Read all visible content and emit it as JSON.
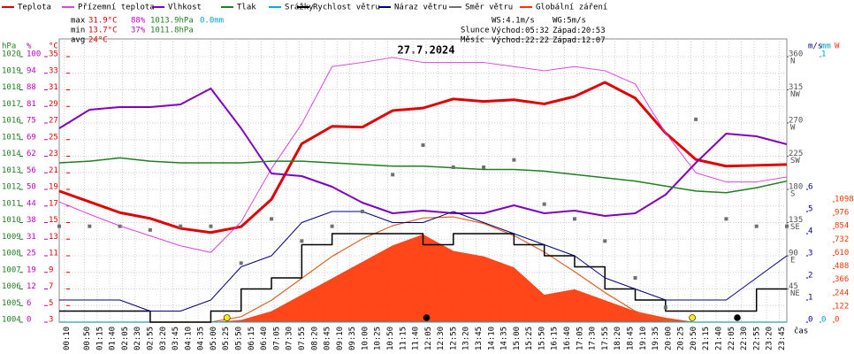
{
  "chart_data": {
    "type": "weather",
    "title": "27.7.2024",
    "x_axis_label": "čas",
    "xlim": [
      0,
      1440
    ],
    "xticks": [
      {
        "value": 10,
        "label": "00:10"
      },
      {
        "value": 50,
        "label": "00:50"
      },
      {
        "value": 75,
        "label": "01:15"
      },
      {
        "value": 100,
        "label": "01:40"
      },
      {
        "value": 125,
        "label": "02:05"
      },
      {
        "value": 150,
        "label": "02:30"
      },
      {
        "value": 175,
        "label": "02:55"
      },
      {
        "value": 200,
        "label": "03:20"
      },
      {
        "value": 225,
        "label": "03:45"
      },
      {
        "value": 250,
        "label": "04:10"
      },
      {
        "value": 275,
        "label": "04:35"
      },
      {
        "value": 300,
        "label": "05:00"
      },
      {
        "value": 325,
        "label": "05:25"
      },
      {
        "value": 350,
        "label": "05:50"
      },
      {
        "value": 375,
        "label": "06:15"
      },
      {
        "value": 400,
        "label": "06:40"
      },
      {
        "value": 425,
        "label": "07:05"
      },
      {
        "value": 450,
        "label": "07:30"
      },
      {
        "value": 475,
        "label": "07:55"
      },
      {
        "value": 500,
        "label": "08:20"
      },
      {
        "value": 525,
        "label": "08:45"
      },
      {
        "value": 550,
        "label": "09:10"
      },
      {
        "value": 575,
        "label": "09:35"
      },
      {
        "value": 600,
        "label": "10:00"
      },
      {
        "value": 625,
        "label": "10:25"
      },
      {
        "value": 650,
        "label": "10:50"
      },
      {
        "value": 675,
        "label": "11:15"
      },
      {
        "value": 700,
        "label": "11:40"
      },
      {
        "value": 725,
        "label": "12:05"
      },
      {
        "value": 750,
        "label": "12:30"
      },
      {
        "value": 775,
        "label": "12:55"
      },
      {
        "value": 800,
        "label": "13:20"
      },
      {
        "value": 825,
        "label": "13:45"
      },
      {
        "value": 850,
        "label": "14:10"
      },
      {
        "value": 875,
        "label": "14:35"
      },
      {
        "value": 900,
        "label": "15:00"
      },
      {
        "value": 925,
        "label": "15:25"
      },
      {
        "value": 950,
        "label": "15:50"
      },
      {
        "value": 975,
        "label": "16:15"
      },
      {
        "value": 1000,
        "label": "16:40"
      },
      {
        "value": 1025,
        "label": "17:05"
      },
      {
        "value": 1050,
        "label": "17:30"
      },
      {
        "value": 1075,
        "label": "17:55"
      },
      {
        "value": 1100,
        "label": "18:20"
      },
      {
        "value": 1125,
        "label": "18:45"
      },
      {
        "value": 1150,
        "label": "19:10"
      },
      {
        "value": 1175,
        "label": "19:35"
      },
      {
        "value": 1200,
        "label": "20:00"
      },
      {
        "value": 1225,
        "label": "20:25"
      },
      {
        "value": 1250,
        "label": "20:50"
      },
      {
        "value": 1275,
        "label": "21:15"
      },
      {
        "value": 1300,
        "label": "21:40"
      },
      {
        "value": 1325,
        "label": "22:05"
      },
      {
        "value": 1350,
        "label": "22:30"
      },
      {
        "value": 1375,
        "label": "22:55"
      },
      {
        "value": 1400,
        "label": "23:20"
      },
      {
        "value": 1425,
        "label": "23:45"
      }
    ],
    "grid": true,
    "axes": {
      "pres": {
        "label": "hPa",
        "color": "#208020",
        "side": "left",
        "lim": [
          1004,
          1020
        ],
        "ticks": [
          1004,
          1005,
          1006,
          1007,
          1008,
          1009,
          1010,
          1011,
          1012,
          1013,
          1014,
          1015,
          1016,
          1017,
          1018,
          1019,
          1020
        ]
      },
      "hum": {
        "label": "%",
        "color": "#c000c0",
        "side": "left",
        "lim": [
          0,
          100
        ],
        "ticks": [
          0,
          {
            "value": 6.25,
            "label": "6"
          },
          {
            "value": 12.5,
            "label": "12"
          },
          {
            "value": 18.75,
            "label": "19"
          },
          25,
          {
            "value": 31.25,
            "label": "31"
          },
          {
            "value": 37.5,
            "label": "38"
          },
          {
            "value": 43.75,
            "label": "44"
          },
          50,
          {
            "value": 56.25,
            "label": "56"
          },
          {
            "value": 62.5,
            "label": "62"
          },
          {
            "value": 68.75,
            "label": "69"
          },
          75,
          {
            "value": 81.25,
            "label": "81"
          },
          {
            "value": 87.5,
            "label": "88"
          },
          {
            "value": 93.75,
            "label": "94"
          },
          100
        ]
      },
      "temp": {
        "label": "°C",
        "color": "#e00000",
        "side": "left",
        "lim": [
          3,
          35
        ],
        "ticks": [
          3,
          5,
          7,
          9,
          11,
          13,
          15,
          17,
          19,
          21,
          23,
          25,
          27,
          29,
          31,
          33,
          35
        ]
      },
      "dir": {
        "color": "#505050",
        "side": "right",
        "lim": [
          0,
          360
        ],
        "ticks": [
          {
            "value": 45,
            "label": "45",
            "dir": "NE"
          },
          {
            "value": 90,
            "label": "90",
            "dir": "E"
          },
          {
            "value": 135,
            "label": "135",
            "dir": "SE"
          },
          {
            "value": 180,
            "label": "180",
            "dir": "S"
          },
          {
            "value": 225,
            "label": "225",
            "dir": "SW"
          },
          {
            "value": 270,
            "label": "270",
            "dir": "W"
          },
          {
            "value": 315,
            "label": "315",
            "dir": "NW"
          },
          {
            "value": 360,
            "label": "360",
            "dir": "N"
          }
        ]
      },
      "wind": {
        "label": "m/s",
        "color": "#000080",
        "side": "right",
        "lim": [
          0,
          12
        ],
        "ticks": [
          0,
          1,
          2,
          3,
          4,
          5,
          6
        ]
      },
      "rain": {
        "label": "mm",
        "color": "#00a0c8",
        "side": "right",
        "lim": [
          0,
          1
        ],
        "ticks": [
          0,
          1
        ]
      },
      "rad": {
        "label": "W",
        "color": "#ff3300",
        "side": "right",
        "lim": [
          0,
          2422
        ],
        "ticks": [
          0,
          122,
          244,
          366,
          488,
          610,
          732,
          854,
          976,
          1098
        ]
      }
    },
    "x": [
      0,
      60,
      120,
      180,
      240,
      300,
      360,
      420,
      480,
      540,
      600,
      660,
      720,
      780,
      840,
      900,
      960,
      1020,
      1080,
      1140,
      1200,
      1260,
      1320,
      1380,
      1440
    ],
    "series": [
      {
        "name": "Teplota",
        "color": "#e00000",
        "axis": "temp",
        "style": "line",
        "width": 3,
        "values": [
          18.8,
          17.5,
          16.2,
          15.5,
          14.3,
          13.8,
          14.5,
          17.8,
          24.5,
          26.6,
          26.5,
          28.5,
          28.8,
          29.9,
          29.6,
          29.8,
          29.3,
          30.2,
          31.9,
          30,
          25.8,
          22.6,
          21.8,
          21.9,
          22
        ]
      },
      {
        "name": "Přízemní teplota",
        "color": "#e040e0",
        "axis": "temp",
        "style": "line",
        "width": 1,
        "values": [
          17.5,
          16,
          14.6,
          13.4,
          12.2,
          11.4,
          15.1,
          21.5,
          26.9,
          33.8,
          34.3,
          34.9,
          34.3,
          34.3,
          34.3,
          33.8,
          33.3,
          33.8,
          33.3,
          31.7,
          25.8,
          21,
          19.9,
          19.9,
          20.5
        ]
      },
      {
        "name": "Vlhkost",
        "color": "#8000c0",
        "axis": "hum",
        "style": "line",
        "width": 2,
        "values": [
          73,
          80,
          81,
          81,
          82,
          88,
          73,
          56,
          55,
          51,
          45,
          41,
          42,
          41,
          41,
          44,
          41,
          42,
          40,
          41,
          48,
          60,
          71,
          70,
          67
        ]
      },
      {
        "name": "Tlak",
        "color": "#208020",
        "axis": "pres",
        "style": "line",
        "width": 1.5,
        "values": [
          1013.6,
          1013.7,
          1013.9,
          1013.7,
          1013.6,
          1013.6,
          1013.6,
          1013.7,
          1013.7,
          1013.6,
          1013.5,
          1013.4,
          1013.4,
          1013.3,
          1013.2,
          1013.2,
          1013.1,
          1012.9,
          1012.7,
          1012.5,
          1012.2,
          1011.9,
          1011.8,
          1012.1,
          1012.5
        ]
      },
      {
        "name": "Srážky",
        "color": "#00b0d0",
        "axis": "rain",
        "style": "line",
        "width": 1,
        "values": [
          0,
          0,
          0,
          0,
          0,
          0,
          0,
          0,
          0,
          0,
          0,
          0,
          0,
          0,
          0,
          0,
          0,
          0,
          0,
          0,
          0,
          0,
          0,
          0,
          0
        ]
      },
      {
        "name": "Rychlost větru",
        "color": "#000000",
        "axis": "wind",
        "style": "step",
        "width": 1.5,
        "values": [
          0.5,
          0.5,
          0.5,
          0,
          0,
          0.5,
          1.5,
          2,
          3.5,
          4,
          4,
          4,
          3.5,
          4,
          4,
          3.5,
          3,
          2.5,
          1.5,
          1,
          0.5,
          0.5,
          0.5,
          1.5,
          1.5
        ]
      },
      {
        "name": "Náraz větru",
        "color": "#000080",
        "axis": "wind",
        "style": "line",
        "width": 1,
        "values": [
          1,
          1,
          1,
          0.5,
          0.5,
          1,
          2.5,
          3,
          4.5,
          5,
          5,
          4.5,
          4.5,
          5,
          4.5,
          4,
          3.5,
          3,
          2,
          1.5,
          1,
          1,
          1,
          2,
          3
        ]
      },
      {
        "name": "Směr větru",
        "color": "#707070",
        "axis": "dir",
        "style": "points",
        "values": [
          130,
          130,
          130,
          125,
          130,
          130,
          80,
          140,
          110,
          130,
          150,
          200,
          240,
          210,
          210,
          220,
          160,
          140,
          110,
          60,
          20,
          275,
          140,
          130,
          130
        ]
      },
      {
        "name": "Globální záření",
        "color": "#ff3300",
        "axis": "rad",
        "style": "area",
        "values": [
          0,
          0,
          0,
          0,
          0,
          0,
          20,
          100,
          250,
          400,
          550,
          700,
          800,
          650,
          600,
          500,
          250,
          300,
          200,
          100,
          40,
          0,
          0,
          0,
          0
        ]
      }
    ],
    "radiation_clear_sky": {
      "color": "#e06020",
      "axis": "rad",
      "values": [
        0,
        0,
        0,
        0,
        0,
        0,
        50,
        200,
        400,
        600,
        760,
        880,
        950,
        960,
        900,
        790,
        640,
        460,
        270,
        100,
        10,
        0,
        0,
        0,
        0
      ]
    },
    "stats": [
      {
        "label": "max",
        "temp": "31.9°C",
        "hum": "88%",
        "pres": "1013.9hPa",
        "rain": "0.0mm"
      },
      {
        "label": "min",
        "temp": "13.7°C",
        "hum": "37%",
        "pres": "1011.8hPa"
      },
      {
        "label": "avg",
        "temp": "24°C"
      }
    ],
    "wind_info": {
      "ws": "WS:4.1m/s",
      "wg": "WG:5m/s"
    },
    "sun": {
      "label": "Slunce",
      "rise_label": "Východ:",
      "rise": "05:32",
      "set_label": "Západ:",
      "set": "20:53",
      "color": "#ffee00"
    },
    "moon": {
      "label": "Měsíc",
      "rise_label": "Východ:",
      "rise": "22:22",
      "set_label": "Západ:",
      "set": "12:07",
      "color": "#000000"
    }
  }
}
